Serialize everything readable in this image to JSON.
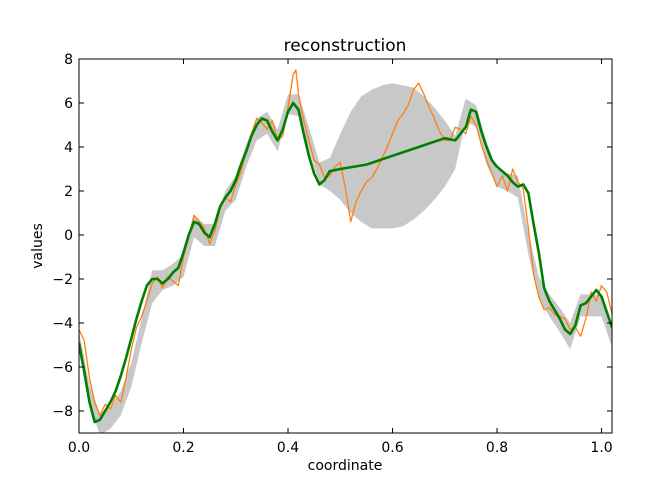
{
  "chart_data": {
    "type": "line",
    "title": "reconstruction",
    "xlabel": "coordinate",
    "ylabel": "values",
    "xlim": [
      0.0,
      1.02
    ],
    "ylim": [
      -9,
      8
    ],
    "xticks": [
      0.0,
      0.2,
      0.4,
      0.6,
      0.8,
      1.0
    ],
    "xtick_labels": [
      "0.0",
      "0.2",
      "0.4",
      "0.6",
      "0.8",
      "1.0"
    ],
    "yticks": [
      -8,
      -6,
      -4,
      -2,
      0,
      2,
      4,
      6,
      8
    ],
    "ytick_labels": [
      "−8",
      "−6",
      "−4",
      "−2",
      "0",
      "2",
      "4",
      "6",
      "8"
    ],
    "grid": false,
    "legend": "none",
    "colors": {
      "band": "#c8c8c8",
      "observed": "#ff7f0e",
      "reconstruction": "#008000"
    },
    "series": [
      {
        "kind": "band",
        "x": [
          0.0,
          0.02,
          0.04,
          0.06,
          0.08,
          0.1,
          0.12,
          0.14,
          0.16,
          0.18,
          0.2,
          0.22,
          0.24,
          0.26,
          0.28,
          0.3,
          0.32,
          0.34,
          0.36,
          0.38,
          0.4,
          0.42,
          0.44,
          0.46,
          0.48,
          0.5,
          0.52,
          0.54,
          0.56,
          0.58,
          0.6,
          0.62,
          0.64,
          0.66,
          0.68,
          0.7,
          0.72,
          0.74,
          0.76,
          0.78,
          0.8,
          0.82,
          0.84,
          0.86,
          0.88,
          0.9,
          0.92,
          0.94,
          0.96,
          0.98,
          1.0,
          1.02
        ],
        "lower": [
          -5.3,
          -7.7,
          -9.1,
          -8.8,
          -8.2,
          -6.9,
          -4.9,
          -3.1,
          -2.5,
          -2.3,
          -1.9,
          -0.1,
          -0.5,
          -0.5,
          1.1,
          1.6,
          3.1,
          4.3,
          4.6,
          3.8,
          5.5,
          5.4,
          3.9,
          2.3,
          2.0,
          1.6,
          1.0,
          0.6,
          0.3,
          0.3,
          0.3,
          0.4,
          0.7,
          1.1,
          1.6,
          2.2,
          3.0,
          5.2,
          4.9,
          3.2,
          2.2,
          2.0,
          1.7,
          -0.9,
          -2.9,
          -3.7,
          -4.4,
          -5.2,
          -3.7,
          -3.7,
          -3.7,
          -5.1
        ],
        "upper": [
          -4.4,
          -6.8,
          -8.1,
          -7.8,
          -7.1,
          -5.8,
          -3.8,
          -1.6,
          -1.6,
          -1.3,
          -0.9,
          0.9,
          0.5,
          0.5,
          2.0,
          2.7,
          4.1,
          5.3,
          5.6,
          4.8,
          6.4,
          6.4,
          4.9,
          3.3,
          3.5,
          4.6,
          5.6,
          6.3,
          6.6,
          6.8,
          6.9,
          6.8,
          6.7,
          6.3,
          5.8,
          5.2,
          4.5,
          6.2,
          5.9,
          4.2,
          3.0,
          2.8,
          2.7,
          0.1,
          -1.9,
          -2.7,
          -3.3,
          -4.0,
          -2.7,
          -2.7,
          -2.7,
          -4.2
        ]
      },
      {
        "kind": "line",
        "x": [
          0.0,
          0.01,
          0.02,
          0.03,
          0.04,
          0.05,
          0.06,
          0.07,
          0.08,
          0.09,
          0.1,
          0.11,
          0.12,
          0.13,
          0.14,
          0.15,
          0.16,
          0.17,
          0.18,
          0.19,
          0.2,
          0.21,
          0.22,
          0.23,
          0.24,
          0.25,
          0.26,
          0.27,
          0.28,
          0.29,
          0.3,
          0.31,
          0.32,
          0.33,
          0.34,
          0.35,
          0.36,
          0.37,
          0.38,
          0.39,
          0.4,
          0.41,
          0.415,
          0.42,
          0.43,
          0.44,
          0.45,
          0.46,
          0.47,
          0.48,
          0.49,
          0.5,
          0.51,
          0.52,
          0.53,
          0.54,
          0.55,
          0.56,
          0.57,
          0.58,
          0.59,
          0.6,
          0.61,
          0.62,
          0.63,
          0.64,
          0.65,
          0.66,
          0.67,
          0.68,
          0.69,
          0.7,
          0.71,
          0.72,
          0.73,
          0.74,
          0.75,
          0.76,
          0.77,
          0.78,
          0.79,
          0.8,
          0.81,
          0.82,
          0.83,
          0.84,
          0.85,
          0.86,
          0.87,
          0.88,
          0.89,
          0.9,
          0.91,
          0.92,
          0.93,
          0.94,
          0.95,
          0.96,
          0.97,
          0.98,
          0.99,
          1.0,
          1.01,
          1.02
        ],
        "y": [
          -4.3,
          -4.8,
          -6.5,
          -7.6,
          -8.2,
          -7.7,
          -7.9,
          -7.3,
          -7.6,
          -6.5,
          -5.2,
          -4.2,
          -3.7,
          -3.0,
          -2.2,
          -1.9,
          -2.4,
          -1.9,
          -2.1,
          -2.3,
          -1.0,
          -0.1,
          0.9,
          0.6,
          0.3,
          -0.4,
          0.2,
          1.2,
          1.7,
          1.5,
          2.3,
          2.9,
          3.8,
          4.6,
          5.3,
          5.1,
          4.8,
          5.2,
          4.3,
          4.5,
          5.8,
          7.3,
          7.5,
          6.4,
          5.2,
          4.3,
          3.4,
          3.2,
          2.6,
          2.7,
          3.1,
          3.3,
          2.1,
          0.6,
          1.5,
          2.0,
          2.4,
          2.6,
          3.0,
          3.5,
          4.0,
          4.6,
          5.2,
          5.5,
          5.9,
          6.6,
          6.9,
          6.4,
          5.8,
          5.3,
          4.7,
          4.3,
          4.3,
          4.9,
          4.8,
          4.6,
          5.4,
          5.0,
          4.1,
          3.4,
          2.8,
          2.2,
          2.7,
          2.0,
          3.0,
          2.4,
          2.1,
          0.3,
          -1.8,
          -2.8,
          -3.4,
          -3.3,
          -3.6,
          -3.7,
          -3.8,
          -4.3,
          -4.2,
          -4.6,
          -3.8,
          -2.6,
          -3.0,
          -2.3,
          -2.6,
          -3.6
        ]
      },
      {
        "kind": "line",
        "x": [
          0.0,
          0.01,
          0.02,
          0.03,
          0.04,
          0.05,
          0.06,
          0.07,
          0.08,
          0.09,
          0.1,
          0.11,
          0.12,
          0.13,
          0.14,
          0.15,
          0.16,
          0.17,
          0.18,
          0.19,
          0.2,
          0.21,
          0.22,
          0.23,
          0.24,
          0.25,
          0.26,
          0.27,
          0.28,
          0.29,
          0.3,
          0.31,
          0.32,
          0.33,
          0.34,
          0.35,
          0.36,
          0.37,
          0.38,
          0.39,
          0.4,
          0.41,
          0.42,
          0.43,
          0.44,
          0.45,
          0.46,
          0.47,
          0.48,
          0.5,
          0.55,
          0.6,
          0.65,
          0.7,
          0.72,
          0.74,
          0.75,
          0.76,
          0.77,
          0.78,
          0.79,
          0.8,
          0.81,
          0.82,
          0.83,
          0.84,
          0.85,
          0.86,
          0.87,
          0.88,
          0.89,
          0.9,
          0.91,
          0.92,
          0.93,
          0.94,
          0.95,
          0.96,
          0.97,
          0.98,
          0.99,
          1.0,
          1.01,
          1.02
        ],
        "y": [
          -4.9,
          -6.2,
          -7.6,
          -8.5,
          -8.4,
          -8.0,
          -7.6,
          -7.1,
          -6.4,
          -5.6,
          -4.7,
          -3.8,
          -3.0,
          -2.3,
          -2.0,
          -2.0,
          -2.2,
          -2.0,
          -1.7,
          -1.5,
          -0.8,
          0.0,
          0.6,
          0.5,
          0.1,
          -0.1,
          0.5,
          1.3,
          1.7,
          2.0,
          2.5,
          3.2,
          3.8,
          4.5,
          5.0,
          5.3,
          5.2,
          4.7,
          4.3,
          4.8,
          5.6,
          6.0,
          5.7,
          4.6,
          3.6,
          2.8,
          2.3,
          2.5,
          2.9,
          3.0,
          3.2,
          3.6,
          4.0,
          4.4,
          4.3,
          4.9,
          5.7,
          5.6,
          4.7,
          4.0,
          3.4,
          3.1,
          2.9,
          2.7,
          2.4,
          2.2,
          2.3,
          1.9,
          0.5,
          -0.8,
          -2.4,
          -3.0,
          -3.4,
          -3.8,
          -4.3,
          -4.5,
          -4.1,
          -3.2,
          -3.1,
          -2.8,
          -2.5,
          -2.8,
          -3.5,
          -4.2
        ]
      }
    ]
  }
}
